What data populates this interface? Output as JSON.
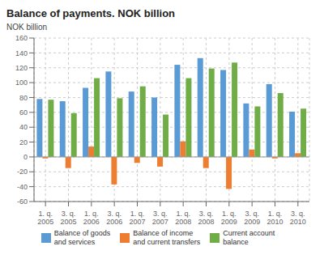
{
  "chart_data": {
    "type": "bar",
    "title": "Balance of payments. NOK billion",
    "ylabel": "NOK billion",
    "categories": [
      "1. q.\n2005",
      "3. q.\n2005",
      "1. q.\n2006",
      "3. q.\n2006",
      "1. q.\n2007",
      "3. q.\n2007",
      "1. q.\n2008",
      "3. q.\n2008",
      "1. q.\n2009",
      "3. q.\n2009",
      "1. q.\n2010",
      "3. q.\n2010"
    ],
    "series": [
      {
        "name": "Balance of goods\nand services",
        "color": "#5b9bd5",
        "values": [
          78,
          75,
          93,
          115,
          88,
          80,
          124,
          133,
          117,
          72,
          98,
          61
        ]
      },
      {
        "name": "Balance of income\nand current transfers",
        "color": "#ed7d31",
        "values": [
          -2,
          -15,
          14,
          -37,
          -8,
          -13,
          21,
          -15,
          -43,
          10,
          -2,
          5
        ]
      },
      {
        "name": "Current account\nbalance",
        "color": "#70ad47",
        "values": [
          77,
          59,
          106,
          79,
          95,
          57,
          106,
          119,
          127,
          68,
          86,
          65
        ]
      }
    ],
    "ylim": [
      -60,
      160
    ],
    "yticks": [
      -60,
      -40,
      -20,
      0,
      20,
      40,
      60,
      80,
      100,
      120,
      140,
      160
    ],
    "grid": true,
    "legend": "bottom"
  }
}
